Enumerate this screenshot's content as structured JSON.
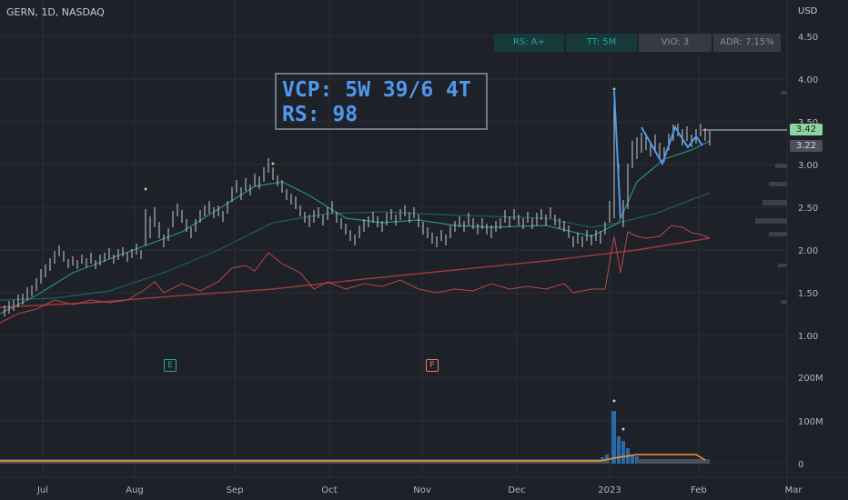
{
  "header": {
    "symbol": "GERN, 1D, NASDAQ",
    "currency": "USD"
  },
  "badges": {
    "rs": "RS: A+",
    "tt": "TT: 5M",
    "vio": "VIO: 3",
    "adr": "ADR: 7.15%"
  },
  "annotation": {
    "line1": "VCP: 5W 39/6 4T",
    "line2": "RS: 98"
  },
  "price_axis": {
    "ticks": [
      "4.50",
      "4.00",
      "3.50",
      "3.00",
      "2.50",
      "2.00",
      "1.50",
      "1.00"
    ],
    "last_price": "3.42",
    "ma_price": "3.22"
  },
  "volume_axis": {
    "ticks": [
      "200M",
      "100M",
      "0"
    ]
  },
  "time_axis": {
    "ticks": [
      "Jul",
      "Aug",
      "Sep",
      "Oct",
      "Nov",
      "Dec",
      "2023",
      "Feb",
      "Mar"
    ]
  },
  "events": {
    "earnings": "E",
    "f_event": "F"
  },
  "colors": {
    "background": "#1f2129",
    "bar": "#c9ccd4",
    "ma_fast": "#2a8f86",
    "ma_slow": "#1d5d62",
    "ma_long": "#9c3b3b",
    "rs_line": "#b84747",
    "annotation": "#4f98ef",
    "volume": "#2b6aa8",
    "volume_avg": "#f39c2b"
  }
}
